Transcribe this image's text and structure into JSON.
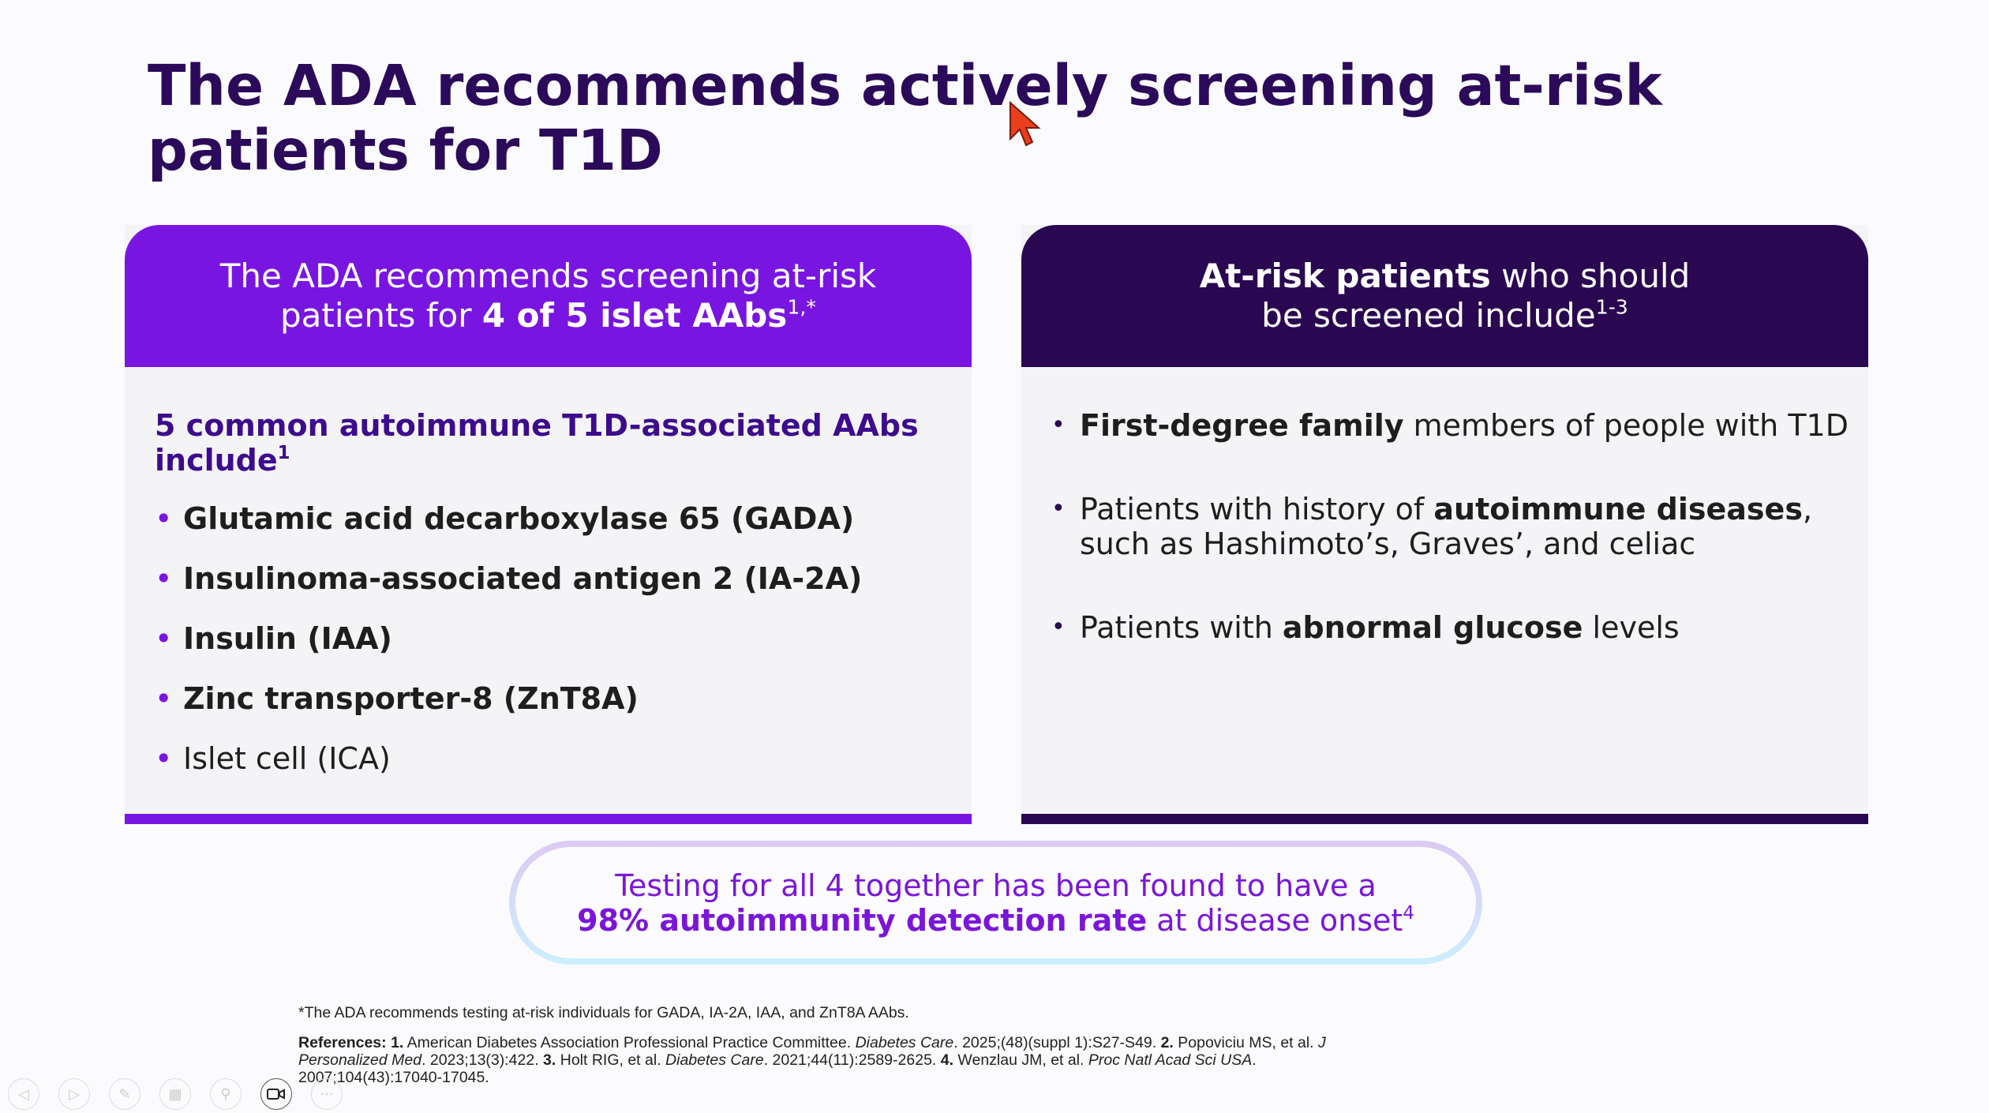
{
  "title": {
    "line1": "The ADA recommends actively screening at-risk",
    "line2": "patients for T1D"
  },
  "left_card": {
    "header": {
      "line1": "The ADA recommends screening at-risk",
      "line2_pre": "patients for ",
      "line2_bold": "4 of 5 islet AAbs",
      "line2_sup": "1,*"
    },
    "subheading": {
      "text": "5 common autoimmune T1D-associated AAbs include",
      "sup": "1"
    },
    "items": [
      {
        "text": "Glutamic acid decarboxylase 65 (GADA)",
        "bold": true
      },
      {
        "text": "Insulinoma-associated antigen 2 (IA-2A)",
        "bold": true
      },
      {
        "text": "Insulin (IAA)",
        "bold": true
      },
      {
        "text": "Zinc transporter-8 (ZnT8A)",
        "bold": true
      },
      {
        "text": "Islet cell (ICA)",
        "bold": false
      }
    ]
  },
  "right_card": {
    "header": {
      "line1_bold": "At-risk patients",
      "line1_rest": " who should",
      "line2": "be screened include",
      "line2_sup": "1-3"
    },
    "items": [
      {
        "pre": "",
        "bold": "First-degree family",
        "post": " members of people with T1D"
      },
      {
        "pre": "Patients with history of ",
        "bold": "autoimmune diseases",
        "post": ", such as Hashimoto’s, Graves’, and celiac"
      },
      {
        "pre": "Patients with ",
        "bold": "abnormal glucose",
        "post": " levels"
      }
    ]
  },
  "callout": {
    "line1": "Testing for all 4 together has been found to have a",
    "line2_bold": "98% autoimmunity detection rate",
    "line2_rest": " at disease onset",
    "line2_sup": "4"
  },
  "footnote": "*The ADA recommends testing at-risk individuals for GADA, IA-2A, IAA, and ZnT8A AAbs.",
  "references": {
    "label": "References:",
    "r1_num": "1.",
    "r1_a": " American Diabetes Association Professional Practice Committee. ",
    "r1_j": "Diabetes Care",
    "r1_b": ". 2025;(48)(suppl 1):S27-S49. ",
    "r2_num": "2.",
    "r2_a": " Popoviciu MS, et al. ",
    "r2_j": "J Personalized Med",
    "r2_b": ". 2023;13(3):422. ",
    "r3_num": "3.",
    "r3_a": " Holt RIG, et al. ",
    "r3_j": "Diabetes Care",
    "r3_b": ". 2021;44(11):2589-2625. ",
    "r4_num": "4.",
    "r4_a": " Wenzlau JM, et al. ",
    "r4_j": "Proc Natl Acad Sci USA",
    "r4_b": ". 2007;104(43):17040-17045."
  },
  "toolbar": {
    "icons": [
      "previous-icon",
      "next-icon",
      "pen-icon",
      "slides-icon",
      "zoom-icon",
      "video-icon",
      "more-icon"
    ]
  },
  "colors": {
    "title": "#2b0a5a",
    "left_accent": "#7915e1",
    "right_accent": "#2a0751",
    "callout_text": "#7a16d8",
    "cursor": "#e8401c"
  }
}
